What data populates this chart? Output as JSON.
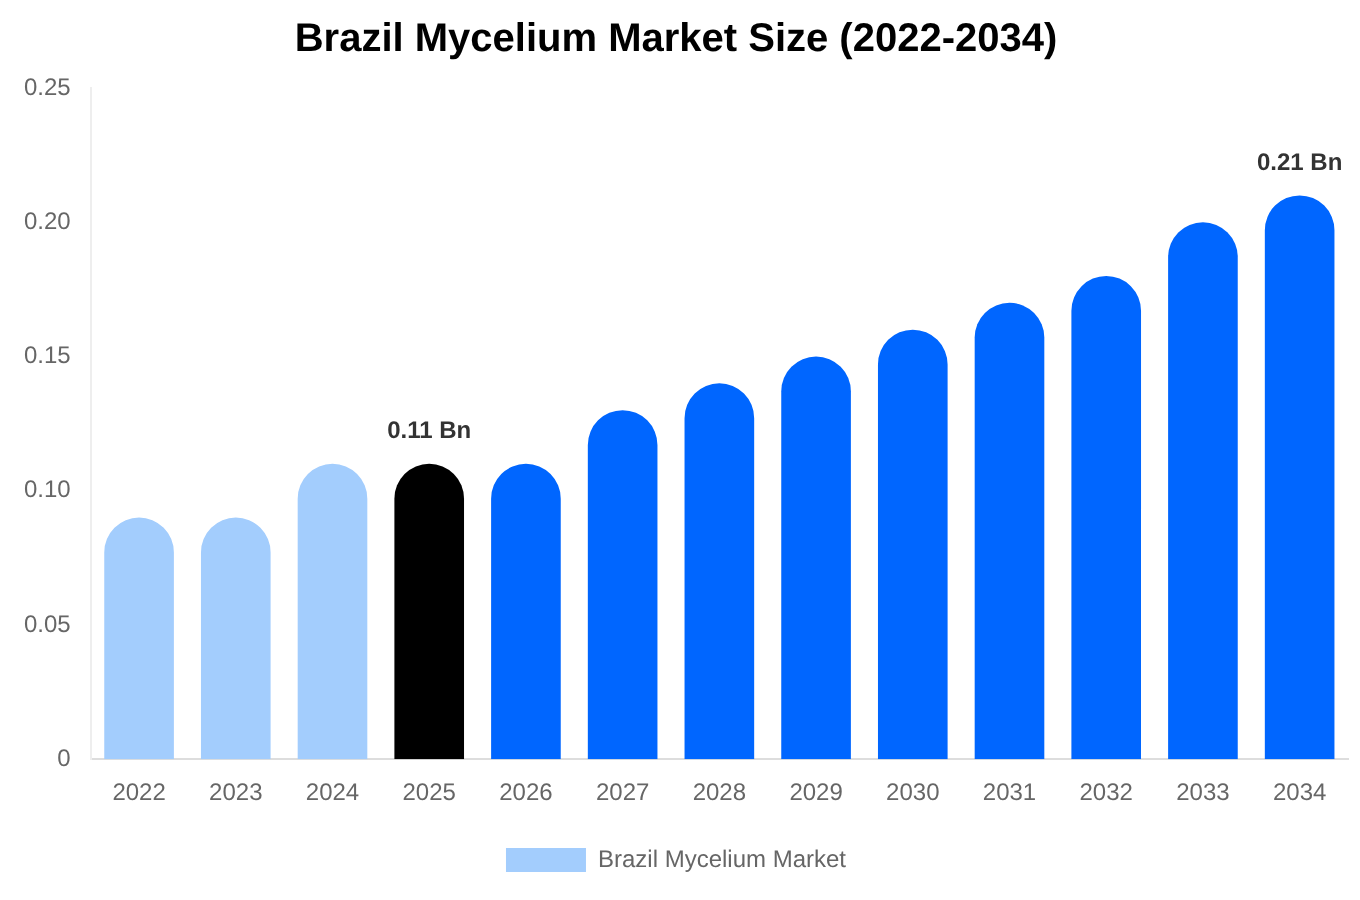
{
  "chart_data": {
    "type": "bar",
    "title": "Brazil Mycelium Market Size (2022-2034)",
    "categories": [
      "2022",
      "2023",
      "2024",
      "2025",
      "2026",
      "2027",
      "2028",
      "2029",
      "2030",
      "2031",
      "2032",
      "2033",
      "2034"
    ],
    "series": [
      {
        "name": "Brazil Mycelium Market",
        "color": "#a3cdfd",
        "colors": [
          "#a3cdfd",
          "#a3cdfd",
          "#a3cdfd",
          "#000000",
          "#0066ff",
          "#0066ff",
          "#0066ff",
          "#0066ff",
          "#0066ff",
          "#0066ff",
          "#0066ff",
          "#0066ff",
          "#0066ff"
        ],
        "values": [
          0.09,
          0.09,
          0.11,
          0.11,
          0.11,
          0.13,
          0.14,
          0.15,
          0.16,
          0.17,
          0.18,
          0.2,
          0.21
        ],
        "value_labels": [
          null,
          null,
          null,
          "0.11 Bn",
          null,
          null,
          null,
          null,
          null,
          null,
          null,
          null,
          "0.21 Bn"
        ]
      }
    ],
    "ylim": [
      0,
      0.25
    ],
    "yticks": [
      0,
      0.05,
      {
        "value": 0.1,
        "label": "0.10"
      },
      0.15,
      {
        "value": 0.2,
        "label": "0.20"
      },
      0.25
    ],
    "grid": false,
    "legend": "bottom"
  }
}
